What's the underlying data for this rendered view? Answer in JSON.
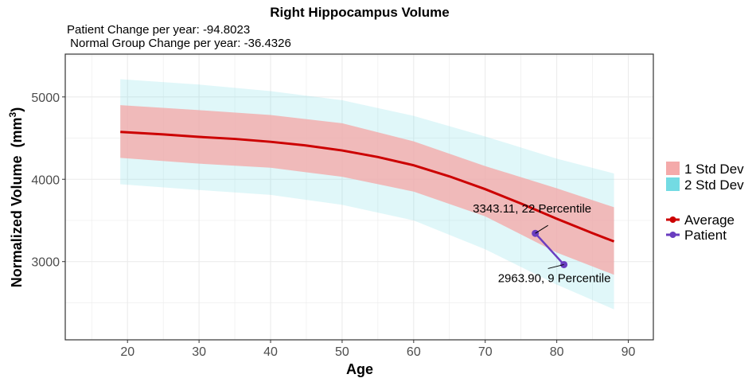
{
  "chart_data": {
    "type": "line",
    "title": "Right Hippocampus Volume",
    "subtitle_lines": [
      "Patient Change per year: -94.8023",
      " Normal Group Change per year: -36.4326"
    ],
    "xlabel": "Age",
    "ylabel": "Normalized Volume",
    "ylabel_unit": [
      "mm",
      "3"
    ],
    "xlim": [
      11.3,
      93.5
    ],
    "ylim": [
      2050,
      5520
    ],
    "x_ticks": [
      20,
      30,
      40,
      50,
      60,
      70,
      80,
      90
    ],
    "y_ticks": [
      3000,
      4000,
      5000
    ],
    "grid": true,
    "legend_position": "right",
    "bands": [
      {
        "name": "2 Std Dev",
        "color": "#73dbe3",
        "x": [
          19,
          30,
          40,
          50,
          60,
          70,
          80,
          88
        ],
        "upper": [
          5215,
          5150,
          5070,
          4960,
          4770,
          4520,
          4250,
          4070
        ],
        "lower": [
          3940,
          3870,
          3810,
          3690,
          3500,
          3150,
          2720,
          2420
        ]
      },
      {
        "name": "1 Std Dev",
        "color": "#f4aaaa",
        "x": [
          19,
          30,
          40,
          50,
          60,
          70,
          80,
          88
        ],
        "upper": [
          4900,
          4840,
          4780,
          4680,
          4460,
          4160,
          3890,
          3660
        ],
        "lower": [
          4260,
          4190,
          4140,
          4030,
          3850,
          3550,
          3110,
          2840
        ]
      }
    ],
    "series": [
      {
        "name": "Average",
        "color": "#cc0000",
        "x": [
          19,
          25,
          30,
          35,
          40,
          45,
          50,
          55,
          60,
          65,
          70,
          75,
          80,
          85,
          88
        ],
        "y": [
          4575,
          4545,
          4515,
          4490,
          4455,
          4410,
          4350,
          4270,
          4170,
          4035,
          3880,
          3705,
          3520,
          3345,
          3245
        ]
      },
      {
        "name": "Patient",
        "color": "#6a3dc0",
        "x": [
          77,
          81
        ],
        "y": [
          3343.11,
          2963.9
        ]
      }
    ],
    "annotations": [
      {
        "text": "3343.11, 22 Percentile",
        "x": 77,
        "y": 3343.11
      },
      {
        "text": "2963.90, 9 Percentile",
        "x": 81,
        "y": 2963.9
      }
    ]
  }
}
